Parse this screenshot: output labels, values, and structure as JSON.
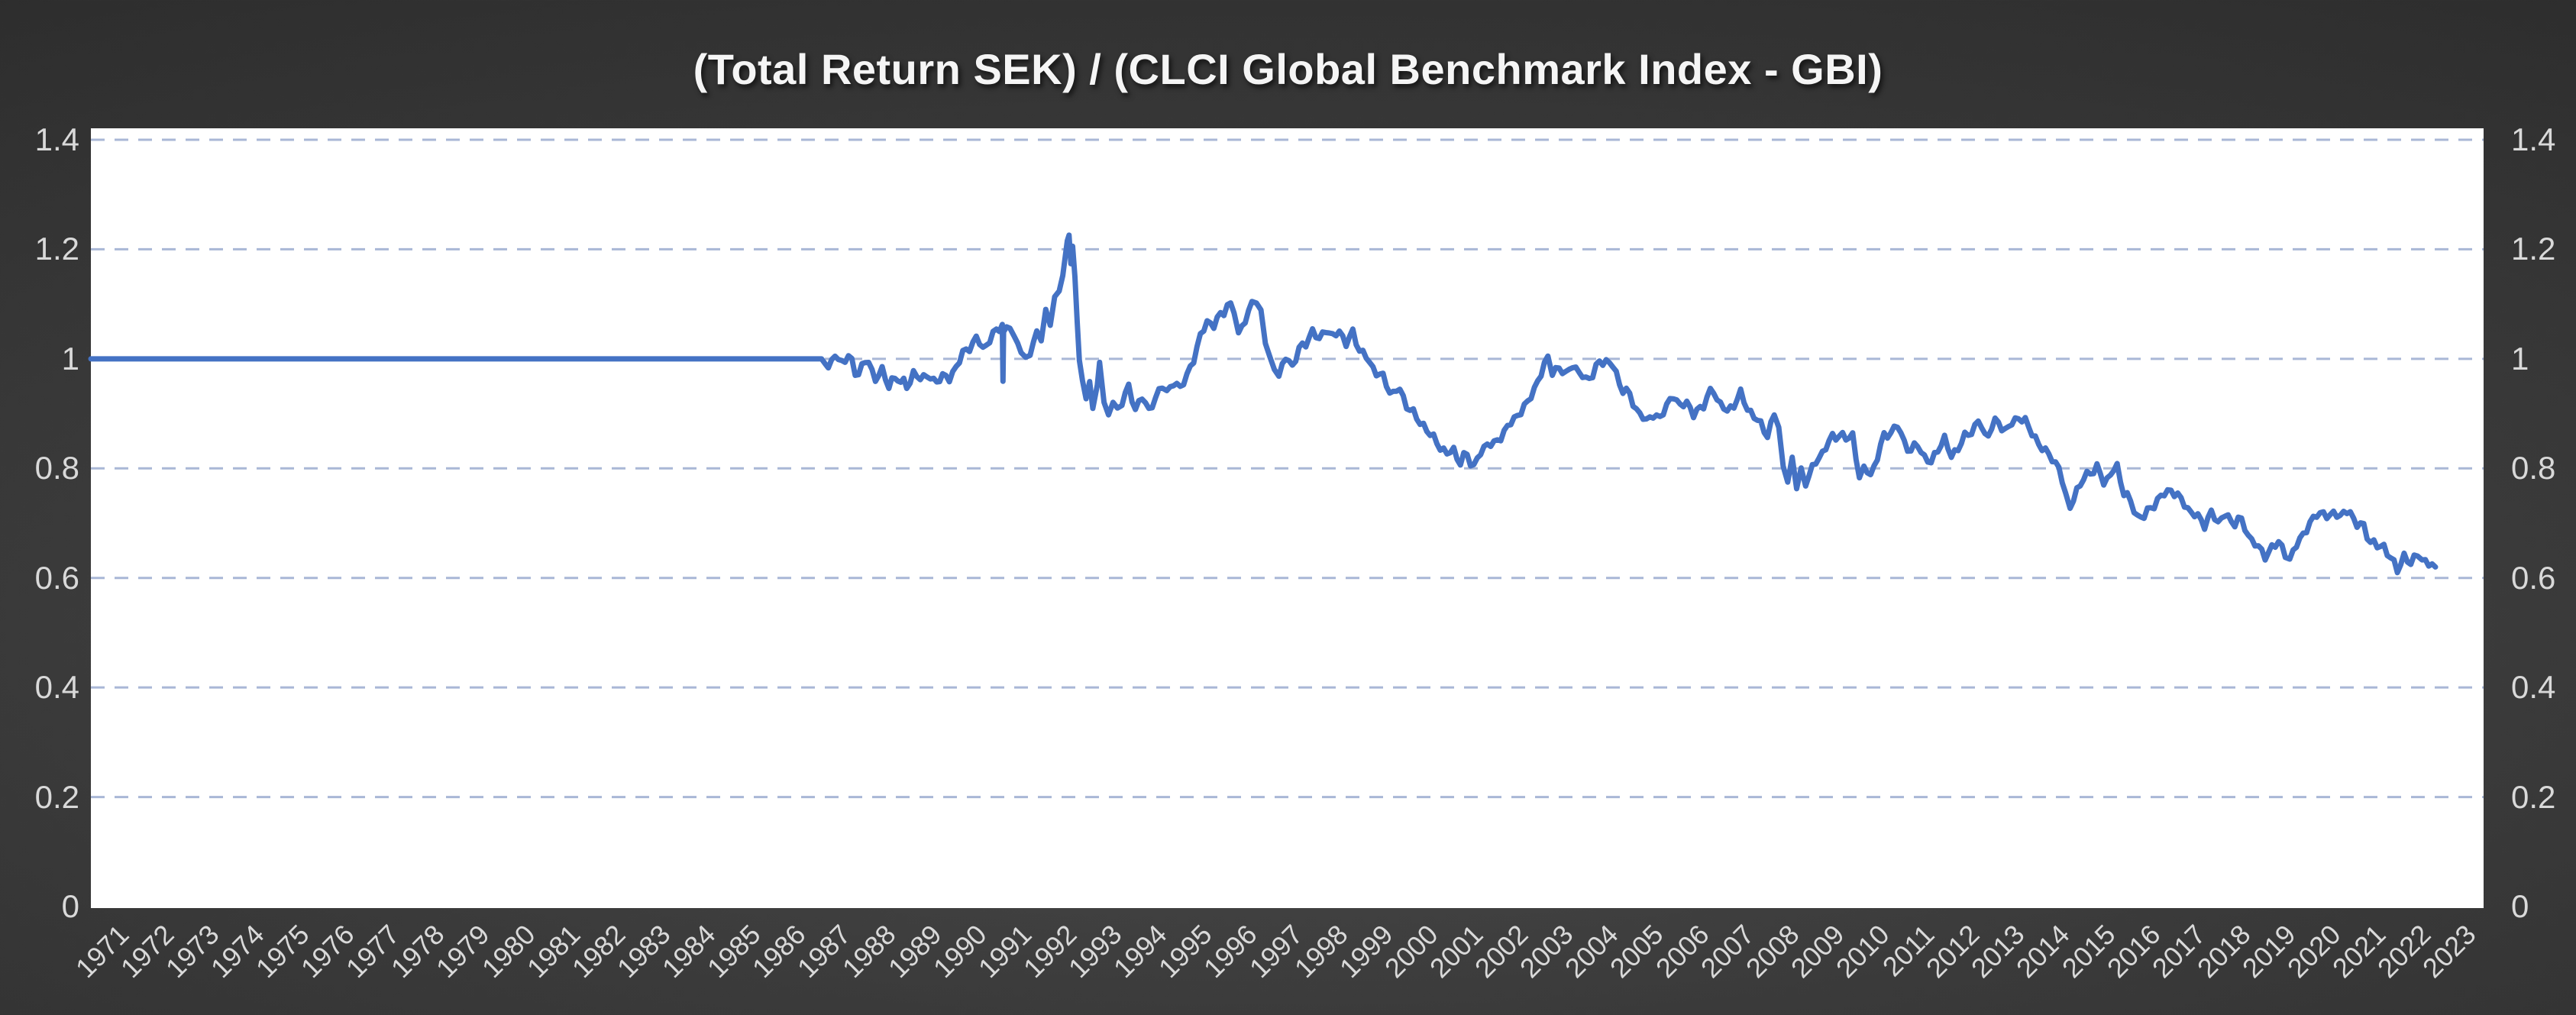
{
  "title": "(Total Return SEK) / (CLCI Global Benchmark Index - GBI)",
  "y_axis": {
    "ticks": [
      "1.4",
      "1.2",
      "1",
      "0.8",
      "0.6",
      "0.4",
      "0.2",
      "0"
    ],
    "tick_values": [
      1.4,
      1.2,
      1.0,
      0.8,
      0.6,
      0.4,
      0.2,
      0
    ],
    "shown_on_left": true,
    "shown_on_right": true
  },
  "x_axis": {
    "ticks": [
      "1971",
      "1972",
      "1973",
      "1974",
      "1975",
      "1976",
      "1977",
      "1978",
      "1979",
      "1980",
      "1981",
      "1982",
      "1983",
      "1984",
      "1985",
      "1986",
      "1987",
      "1988",
      "1989",
      "1990",
      "1991",
      "1992",
      "1993",
      "1994",
      "1995",
      "1996",
      "1997",
      "1998",
      "1999",
      "2000",
      "2001",
      "2002",
      "2003",
      "2004",
      "2005",
      "2006",
      "2007",
      "2008",
      "2009",
      "2010",
      "2011",
      "2012",
      "2013",
      "2014",
      "2015",
      "2016",
      "2017",
      "2018",
      "2019",
      "2020",
      "2021",
      "2022",
      "2023"
    ],
    "label_rotation_deg": -45
  },
  "colors": {
    "series_line": "#4472C4",
    "gridline": "#a9b7d6",
    "plot_background": "#FFFFFF",
    "axis_label": "#d9d9d9",
    "title_text": "#f5f5f5",
    "page_background_center": "#4e4e4e",
    "page_background_edge": "#262626"
  },
  "chart_data": {
    "type": "line",
    "title": "(Total Return SEK) / (CLCI Global Benchmark Index - GBI)",
    "xlabel": "",
    "ylabel": "",
    "ylim": [
      0,
      1.4
    ],
    "xlim": [
      1971,
      2023.6
    ],
    "grid": "horizontal-dashed",
    "legend_position": "none",
    "series": [
      {
        "name": "(Total Return SEK) / (CLCI Global Benchmark Index - GBI)",
        "color": "#4472C4",
        "description": "Ratio flat at 1.0 from 1971 until 1987, then floating; peak 1.22 in late 1992, long decline to 0.62 by 2023. Includes one-day downward spike to 0.96 in 1991.",
        "points": [
          [
            1971.0,
            1.0
          ],
          [
            1987.3,
            1.0
          ],
          [
            1987.45,
            0.985
          ],
          [
            1987.6,
            1.005
          ],
          [
            1987.75,
            0.995
          ],
          [
            1987.9,
            1.005
          ],
          [
            1988.05,
            0.975
          ],
          [
            1988.2,
            0.985
          ],
          [
            1988.35,
            0.995
          ],
          [
            1988.5,
            0.965
          ],
          [
            1988.65,
            0.975
          ],
          [
            1988.8,
            0.955
          ],
          [
            1989.0,
            0.965
          ],
          [
            1989.2,
            0.95
          ],
          [
            1989.35,
            0.975
          ],
          [
            1989.5,
            0.96
          ],
          [
            1989.65,
            0.975
          ],
          [
            1989.8,
            0.955
          ],
          [
            1990.0,
            0.97
          ],
          [
            1990.15,
            0.96
          ],
          [
            1990.3,
            0.99
          ],
          [
            1990.45,
            1.005
          ],
          [
            1990.6,
            1.025
          ],
          [
            1990.75,
            1.035
          ],
          [
            1990.9,
            1.02
          ],
          [
            1991.05,
            1.035
          ],
          [
            1991.2,
            1.05
          ],
          [
            1991.33,
            1.065
          ],
          [
            1991.345,
            0.958
          ],
          [
            1991.36,
            1.05
          ],
          [
            1991.5,
            1.06
          ],
          [
            1991.6,
            1.03
          ],
          [
            1991.75,
            1.02
          ],
          [
            1991.85,
            0.995
          ],
          [
            1991.95,
            1.01
          ],
          [
            1992.1,
            1.05
          ],
          [
            1992.2,
            1.04
          ],
          [
            1992.3,
            1.09
          ],
          [
            1992.4,
            1.07
          ],
          [
            1992.5,
            1.11
          ],
          [
            1992.6,
            1.13
          ],
          [
            1992.68,
            1.16
          ],
          [
            1992.78,
            1.215
          ],
          [
            1992.82,
            1.225
          ],
          [
            1992.86,
            1.185
          ],
          [
            1992.9,
            1.21
          ],
          [
            1992.95,
            1.15
          ],
          [
            1993.0,
            1.06
          ],
          [
            1993.05,
            1.0
          ],
          [
            1993.12,
            0.965
          ],
          [
            1993.2,
            0.92
          ],
          [
            1993.28,
            0.96
          ],
          [
            1993.35,
            0.915
          ],
          [
            1993.45,
            0.95
          ],
          [
            1993.5,
            0.995
          ],
          [
            1993.6,
            0.92
          ],
          [
            1993.7,
            0.895
          ],
          [
            1993.8,
            0.93
          ],
          [
            1993.9,
            0.905
          ],
          [
            1994.0,
            0.925
          ],
          [
            1994.15,
            0.945
          ],
          [
            1994.3,
            0.91
          ],
          [
            1994.45,
            0.93
          ],
          [
            1994.6,
            0.905
          ],
          [
            1994.75,
            0.93
          ],
          [
            1994.9,
            0.95
          ],
          [
            1995.0,
            0.935
          ],
          [
            1995.15,
            0.96
          ],
          [
            1995.3,
            0.945
          ],
          [
            1995.45,
            0.97
          ],
          [
            1995.6,
            1.0
          ],
          [
            1995.75,
            1.04
          ],
          [
            1995.9,
            1.07
          ],
          [
            1996.05,
            1.06
          ],
          [
            1996.2,
            1.08
          ],
          [
            1996.35,
            1.1
          ],
          [
            1996.5,
            1.085
          ],
          [
            1996.6,
            1.04
          ],
          [
            1996.75,
            1.075
          ],
          [
            1996.9,
            1.1
          ],
          [
            1997.0,
            1.105
          ],
          [
            1997.1,
            1.08
          ],
          [
            1997.2,
            1.035
          ],
          [
            1997.3,
            1.0
          ],
          [
            1997.4,
            0.985
          ],
          [
            1997.5,
            0.97
          ],
          [
            1997.65,
            1.0
          ],
          [
            1997.8,
            0.99
          ],
          [
            1997.95,
            1.015
          ],
          [
            1998.1,
            1.03
          ],
          [
            1998.25,
            1.05
          ],
          [
            1998.4,
            1.035
          ],
          [
            1998.55,
            1.055
          ],
          [
            1998.7,
            1.04
          ],
          [
            1998.85,
            1.05
          ],
          [
            1999.0,
            1.03
          ],
          [
            1999.15,
            1.045
          ],
          [
            1999.3,
            1.02
          ],
          [
            1999.45,
            1.0
          ],
          [
            1999.6,
            0.985
          ],
          [
            1999.75,
            0.97
          ],
          [
            1999.9,
            0.955
          ],
          [
            2000.05,
            0.935
          ],
          [
            2000.2,
            0.945
          ],
          [
            2000.35,
            0.915
          ],
          [
            2000.5,
            0.9
          ],
          [
            2000.65,
            0.885
          ],
          [
            2000.8,
            0.87
          ],
          [
            2000.95,
            0.855
          ],
          [
            2001.1,
            0.84
          ],
          [
            2001.25,
            0.825
          ],
          [
            2001.4,
            0.835
          ],
          [
            2001.55,
            0.81
          ],
          [
            2001.7,
            0.825
          ],
          [
            2001.85,
            0.805
          ],
          [
            2002.0,
            0.825
          ],
          [
            2002.15,
            0.85
          ],
          [
            2002.3,
            0.84
          ],
          [
            2002.45,
            0.86
          ],
          [
            2002.6,
            0.875
          ],
          [
            2002.75,
            0.89
          ],
          [
            2002.9,
            0.905
          ],
          [
            2003.05,
            0.92
          ],
          [
            2003.2,
            0.945
          ],
          [
            2003.35,
            0.975
          ],
          [
            2003.5,
            1.0
          ],
          [
            2003.6,
            0.975
          ],
          [
            2003.75,
            0.985
          ],
          [
            2003.9,
            0.97
          ],
          [
            2004.05,
            0.99
          ],
          [
            2004.2,
            0.975
          ],
          [
            2004.35,
            0.96
          ],
          [
            2004.5,
            0.975
          ],
          [
            2004.65,
            0.99
          ],
          [
            2004.8,
            1.0
          ],
          [
            2004.95,
            0.985
          ],
          [
            2005.1,
            0.955
          ],
          [
            2005.25,
            0.94
          ],
          [
            2005.4,
            0.92
          ],
          [
            2005.55,
            0.9
          ],
          [
            2005.7,
            0.885
          ],
          [
            2005.85,
            0.9
          ],
          [
            2006.0,
            0.89
          ],
          [
            2006.15,
            0.915
          ],
          [
            2006.3,
            0.935
          ],
          [
            2006.45,
            0.91
          ],
          [
            2006.6,
            0.925
          ],
          [
            2006.75,
            0.895
          ],
          [
            2006.9,
            0.91
          ],
          [
            2007.05,
            0.93
          ],
          [
            2007.2,
            0.94
          ],
          [
            2007.35,
            0.92
          ],
          [
            2007.5,
            0.9
          ],
          [
            2007.65,
            0.92
          ],
          [
            2007.8,
            0.935
          ],
          [
            2007.95,
            0.91
          ],
          [
            2008.1,
            0.895
          ],
          [
            2008.25,
            0.88
          ],
          [
            2008.4,
            0.86
          ],
          [
            2008.55,
            0.9
          ],
          [
            2008.65,
            0.87
          ],
          [
            2008.75,
            0.8
          ],
          [
            2008.85,
            0.78
          ],
          [
            2008.95,
            0.815
          ],
          [
            2009.05,
            0.77
          ],
          [
            2009.15,
            0.8
          ],
          [
            2009.25,
            0.775
          ],
          [
            2009.4,
            0.8
          ],
          [
            2009.55,
            0.82
          ],
          [
            2009.7,
            0.84
          ],
          [
            2009.85,
            0.855
          ],
          [
            2010.0,
            0.865
          ],
          [
            2010.15,
            0.85
          ],
          [
            2010.3,
            0.865
          ],
          [
            2010.45,
            0.78
          ],
          [
            2010.55,
            0.8
          ],
          [
            2010.7,
            0.785
          ],
          [
            2010.85,
            0.825
          ],
          [
            2011.0,
            0.855
          ],
          [
            2011.15,
            0.87
          ],
          [
            2011.3,
            0.875
          ],
          [
            2011.45,
            0.85
          ],
          [
            2011.6,
            0.83
          ],
          [
            2011.75,
            0.845
          ],
          [
            2011.9,
            0.82
          ],
          [
            2012.05,
            0.81
          ],
          [
            2012.2,
            0.835
          ],
          [
            2012.35,
            0.855
          ],
          [
            2012.5,
            0.82
          ],
          [
            2012.65,
            0.84
          ],
          [
            2012.8,
            0.855
          ],
          [
            2012.95,
            0.87
          ],
          [
            2013.1,
            0.885
          ],
          [
            2013.25,
            0.86
          ],
          [
            2013.4,
            0.875
          ],
          [
            2013.55,
            0.885
          ],
          [
            2013.7,
            0.87
          ],
          [
            2013.85,
            0.88
          ],
          [
            2014.0,
            0.895
          ],
          [
            2014.15,
            0.885
          ],
          [
            2014.3,
            0.865
          ],
          [
            2014.45,
            0.845
          ],
          [
            2014.6,
            0.83
          ],
          [
            2014.75,
            0.82
          ],
          [
            2014.9,
            0.8
          ],
          [
            2015.05,
            0.75
          ],
          [
            2015.15,
            0.73
          ],
          [
            2015.3,
            0.76
          ],
          [
            2015.45,
            0.78
          ],
          [
            2015.6,
            0.795
          ],
          [
            2015.75,
            0.8
          ],
          [
            2015.9,
            0.775
          ],
          [
            2016.05,
            0.79
          ],
          [
            2016.2,
            0.8
          ],
          [
            2016.35,
            0.76
          ],
          [
            2016.5,
            0.735
          ],
          [
            2016.65,
            0.715
          ],
          [
            2016.8,
            0.71
          ],
          [
            2016.95,
            0.73
          ],
          [
            2017.1,
            0.74
          ],
          [
            2017.25,
            0.755
          ],
          [
            2017.4,
            0.76
          ],
          [
            2017.55,
            0.75
          ],
          [
            2017.7,
            0.735
          ],
          [
            2017.85,
            0.72
          ],
          [
            2018.0,
            0.71
          ],
          [
            2018.15,
            0.7
          ],
          [
            2018.3,
            0.715
          ],
          [
            2018.45,
            0.705
          ],
          [
            2018.6,
            0.715
          ],
          [
            2018.75,
            0.7
          ],
          [
            2018.9,
            0.71
          ],
          [
            2019.05,
            0.69
          ],
          [
            2019.2,
            0.67
          ],
          [
            2019.35,
            0.655
          ],
          [
            2019.5,
            0.64
          ],
          [
            2019.65,
            0.655
          ],
          [
            2019.8,
            0.665
          ],
          [
            2019.95,
            0.645
          ],
          [
            2020.05,
            0.633
          ],
          [
            2020.2,
            0.66
          ],
          [
            2020.35,
            0.68
          ],
          [
            2020.5,
            0.7
          ],
          [
            2020.65,
            0.715
          ],
          [
            2020.8,
            0.72
          ],
          [
            2020.95,
            0.71
          ],
          [
            2021.1,
            0.72
          ],
          [
            2021.25,
            0.715
          ],
          [
            2021.4,
            0.72
          ],
          [
            2021.55,
            0.7
          ],
          [
            2021.7,
            0.69
          ],
          [
            2021.85,
            0.67
          ],
          [
            2022.0,
            0.655
          ],
          [
            2022.15,
            0.66
          ],
          [
            2022.3,
            0.635
          ],
          [
            2022.45,
            0.615
          ],
          [
            2022.6,
            0.64
          ],
          [
            2022.75,
            0.625
          ],
          [
            2022.9,
            0.645
          ],
          [
            2023.0,
            0.635
          ],
          [
            2023.15,
            0.625
          ],
          [
            2023.3,
            0.62
          ]
        ],
        "flat_until_year": 1987.3,
        "noise_amplitude_units": 0.008
      }
    ]
  }
}
